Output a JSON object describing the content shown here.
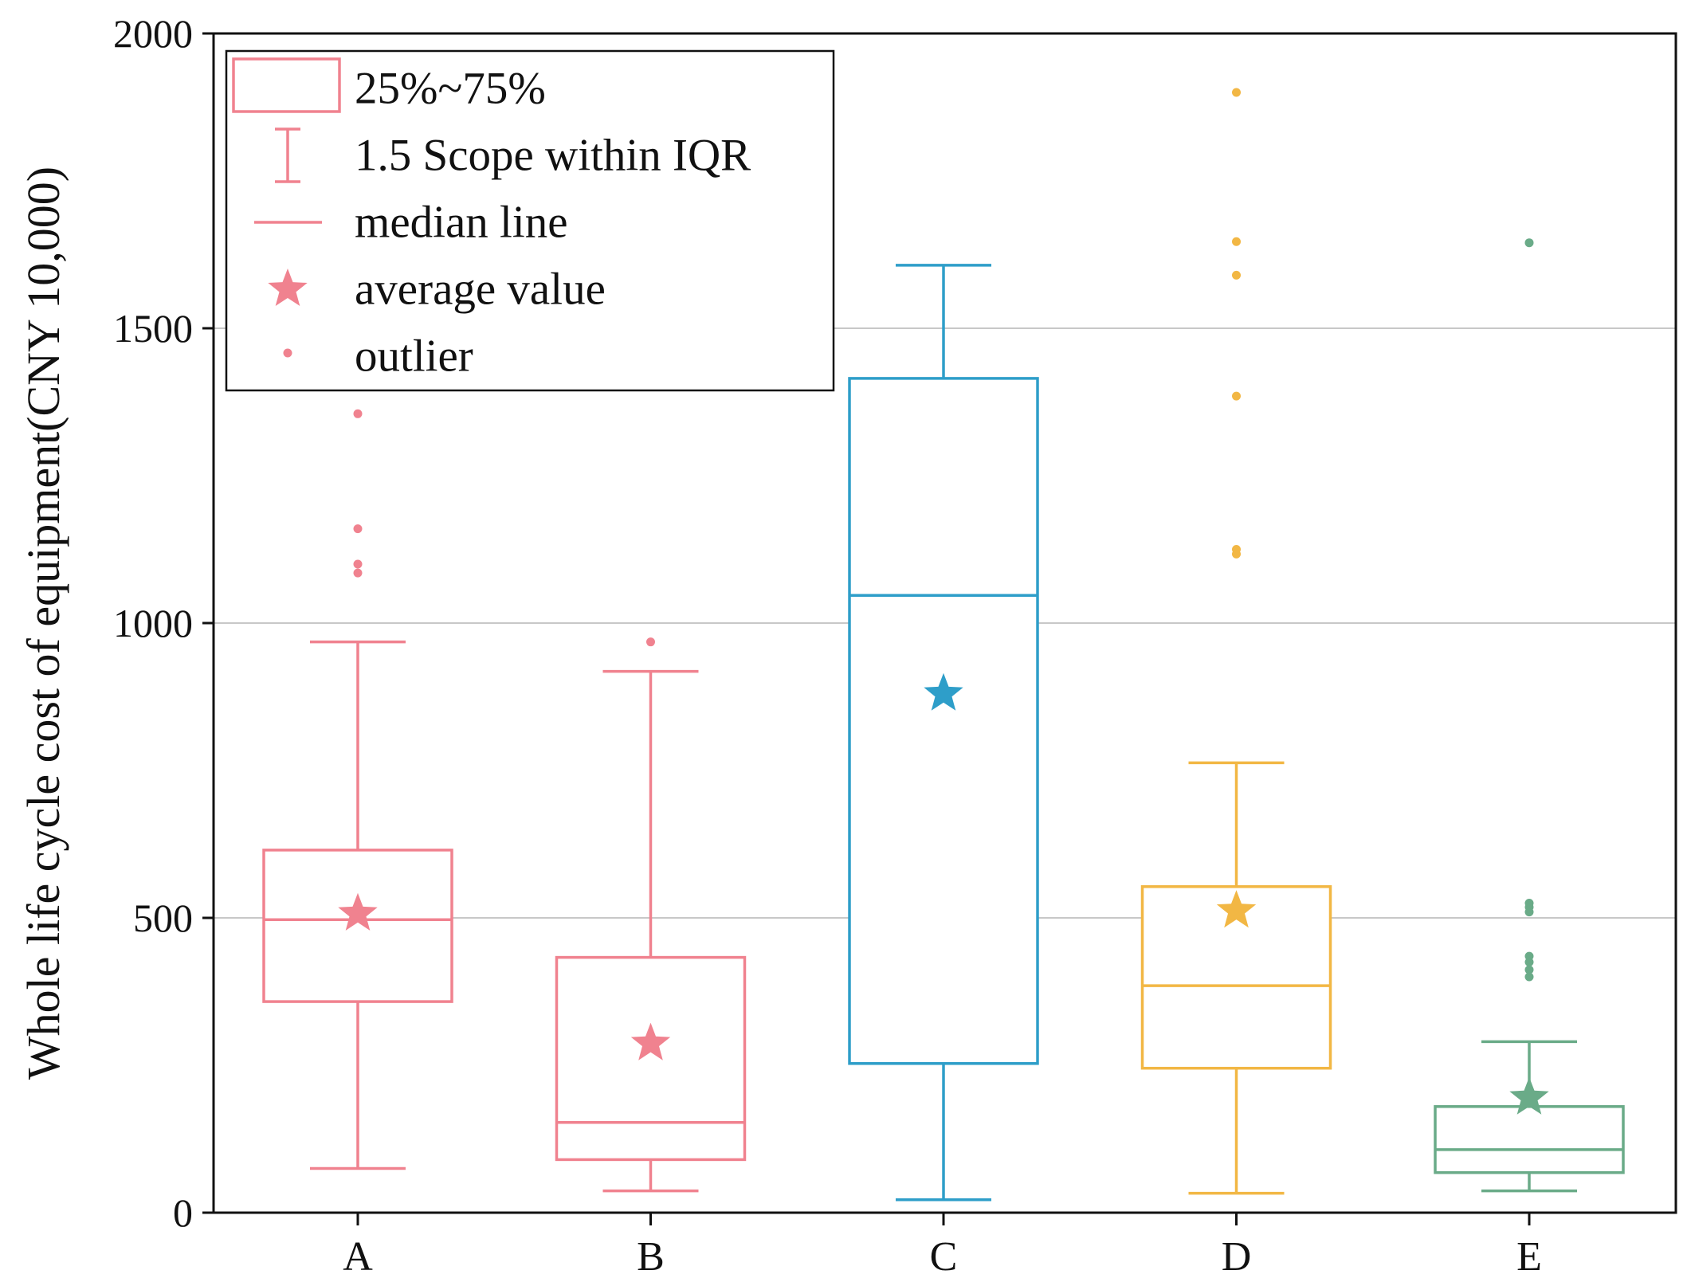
{
  "chart_data": {
    "type": "boxplot",
    "title": "",
    "xlabel": "",
    "ylabel": "Whole life cycle cost of equipment(CNY 10,000)",
    "ylim": [
      0,
      2000
    ],
    "yticks": [
      0,
      500,
      1000,
      1500,
      2000
    ],
    "ytick_labels": [
      "0",
      "500",
      "1000",
      "1500",
      "2000"
    ],
    "grid": "horizontal",
    "categories": [
      "A",
      "B",
      "C",
      "D",
      "E"
    ],
    "series": [
      {
        "name": "A",
        "color": "#f0828f",
        "q1": 358,
        "median": 497,
        "q3": 615,
        "whisker_low": 75,
        "whisker_high": 968,
        "mean": 507,
        "outliers": [
          1085,
          1100,
          1160,
          1355
        ]
      },
      {
        "name": "B",
        "color": "#f0828f",
        "q1": 90,
        "median": 153,
        "q3": 433,
        "whisker_low": 37,
        "whisker_high": 918,
        "mean": 287,
        "outliers": [
          968
        ]
      },
      {
        "name": "C",
        "color": "#2e9ec9",
        "q1": 253,
        "median": 1047,
        "q3": 1415,
        "whisker_low": 22,
        "whisker_high": 1607,
        "mean": 880,
        "outliers": []
      },
      {
        "name": "D",
        "color": "#f2b744",
        "q1": 245,
        "median": 385,
        "q3": 553,
        "whisker_low": 33,
        "whisker_high": 763,
        "mean": 512,
        "outliers": [
          1117,
          1125,
          1385,
          1590,
          1647,
          1900
        ]
      },
      {
        "name": "E",
        "color": "#6aab88",
        "q1": 68,
        "median": 107,
        "q3": 180,
        "whisker_low": 37,
        "whisker_high": 290,
        "mean": 195,
        "outliers": [
          400,
          412,
          425,
          435,
          510,
          518,
          525,
          1645
        ]
      }
    ],
    "legend": {
      "position": "top-left",
      "color": "#f0828f",
      "items": [
        {
          "symbol": "box",
          "label": "25%~75%"
        },
        {
          "symbol": "whisker",
          "label": "1.5 Scope within IQR"
        },
        {
          "symbol": "line",
          "label": "median line"
        },
        {
          "symbol": "star",
          "label": "average value"
        },
        {
          "symbol": "dot",
          "label": "outlier"
        }
      ]
    }
  }
}
